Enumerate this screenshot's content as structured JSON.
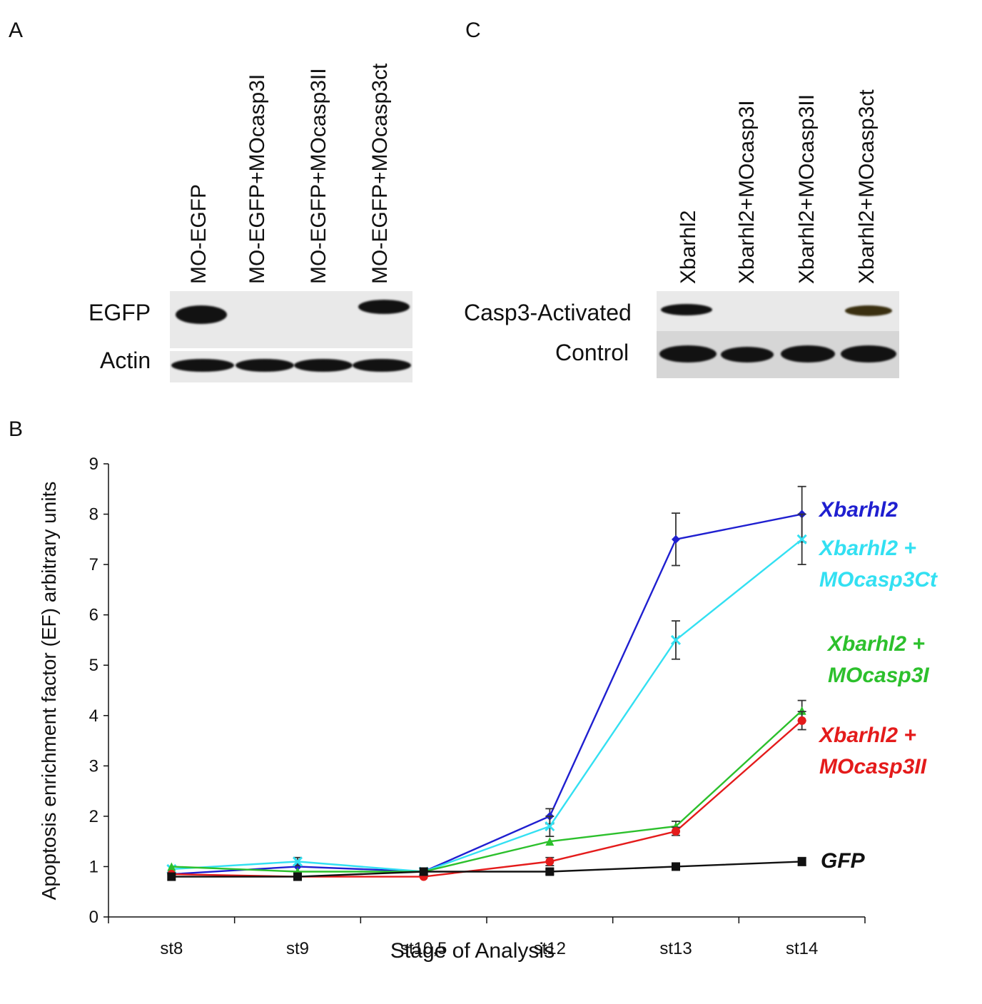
{
  "panels": {
    "a": "A",
    "b": "B",
    "c": "C"
  },
  "blot_a": {
    "lanes": [
      "MO-EGFP",
      "MO-EGFP+MOcasp3I",
      "MO-EGFP+MOcasp3II",
      "MO-EGFP+MOcasp3ct"
    ],
    "rows": [
      "EGFP",
      "Actin"
    ]
  },
  "blot_c": {
    "lanes": [
      "Xbarhl2",
      "Xbarhl2+MOcasp3I",
      "Xbarhl2+MOcasp3II",
      "Xbarhl2+MOcasp3ct"
    ],
    "rows": [
      "Casp3-Activated",
      "Control"
    ]
  },
  "chart_data": {
    "type": "line",
    "xlabel": "Stage of Analysis",
    "ylabel": "Apoptosis enrichment factor (EF) arbitrary units",
    "categories": [
      "st8",
      "st9",
      "st10,5",
      "st12",
      "st13",
      "st14"
    ],
    "ylim": [
      0,
      9
    ],
    "yticks": [
      0,
      1,
      2,
      3,
      4,
      5,
      6,
      7,
      8,
      9
    ],
    "grid": false,
    "legend": "right",
    "series": [
      {
        "name": "Xbarhl2",
        "label_lines": [
          "Xbarhl2"
        ],
        "color": "#1f1fd0",
        "marker": "diamond",
        "values": [
          0.85,
          1.0,
          0.9,
          2.0,
          7.5,
          8.0
        ],
        "errors": [
          0,
          0,
          0,
          0.15,
          0.52,
          0.55
        ]
      },
      {
        "name": "Xbarhl2 + MOcasp3Ct",
        "label_lines": [
          "Xbarhl2 +",
          "MOcasp3Ct"
        ],
        "color": "#33e0f2",
        "marker": "x",
        "values": [
          0.95,
          1.1,
          0.9,
          1.8,
          5.5,
          7.5
        ],
        "errors": [
          0,
          0.08,
          0,
          0.2,
          0.38,
          0.5
        ]
      },
      {
        "name": "Xbarhl2 + MOcasp3I",
        "label_lines": [
          "Xbarhl2 +",
          "MOcasp3I"
        ],
        "color": "#2cc02c",
        "marker": "triangle",
        "values": [
          1.0,
          0.9,
          0.9,
          1.5,
          1.8,
          4.1
        ],
        "errors": [
          0,
          0,
          0,
          0,
          0.1,
          0.2
        ]
      },
      {
        "name": "Xbarhl2 + MOcasp3II",
        "label_lines": [
          "Xbarhl2 +",
          "MOcasp3II"
        ],
        "color": "#e41b1b",
        "marker": "circle",
        "values": [
          0.85,
          0.8,
          0.8,
          1.1,
          1.7,
          3.9
        ],
        "errors": [
          0,
          0,
          0,
          0.08,
          0.08,
          0.18
        ]
      },
      {
        "name": "GFP",
        "label_lines": [
          "GFP"
        ],
        "color": "#111111",
        "marker": "square",
        "values": [
          0.8,
          0.8,
          0.9,
          0.9,
          1.0,
          1.1
        ],
        "errors": [
          0,
          0,
          0,
          0.05,
          0.05,
          0.08
        ]
      }
    ]
  }
}
